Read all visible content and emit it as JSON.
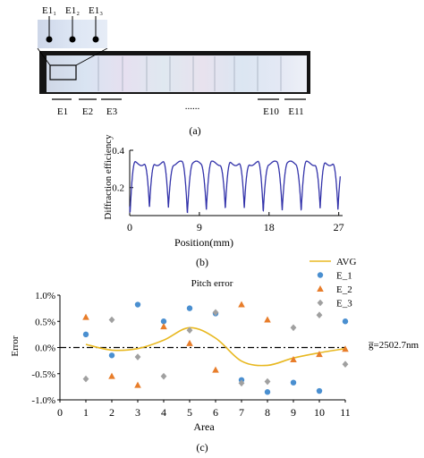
{
  "panel_a": {
    "inset_labels": [
      "E1₁",
      "E1₂",
      "E1₃"
    ],
    "region_labels": [
      "E1",
      "E2",
      "E3",
      "......",
      "E10",
      "E11"
    ],
    "caption": "(a)"
  },
  "panel_b": {
    "caption": "(b)"
  },
  "panel_c": {
    "caption": "(c)"
  },
  "chart_data": [
    {
      "type": "line",
      "title": "",
      "xlabel": "Position(mm)",
      "ylabel": "Diffraction efficiency",
      "xlim": [
        0,
        27.5
      ],
      "ylim": [
        0.05,
        0.4
      ],
      "x_ticks": [
        0,
        9,
        18,
        27
      ],
      "y_ticks": [
        0.2,
        0.4
      ],
      "series": [
        {
          "color": "#3333aa",
          "profile_plateau_level": 0.33,
          "dip_positions": [
            0.05,
            2.55,
            5.0,
            7.45,
            9.9,
            12.35,
            14.8,
            17.25,
            19.7,
            22.15,
            24.6,
            26.9
          ],
          "dip_min_values": [
            0.06,
            0.08,
            0.09,
            0.07,
            0.09,
            0.08,
            0.08,
            0.07,
            0.09,
            0.08,
            0.08,
            0.07
          ]
        }
      ]
    },
    {
      "type": "scatter",
      "title": "Pitch error",
      "xlabel": "Area",
      "ylabel": "Error",
      "xlim": [
        0,
        11
      ],
      "ylim": [
        -1.0,
        1.0
      ],
      "x_ticks": [
        0,
        1,
        2,
        3,
        4,
        5,
        6,
        7,
        8,
        9,
        10,
        11
      ],
      "y_ticks": [
        1.0,
        0.5,
        0.0,
        -0.5,
        -1.0
      ],
      "y_tick_labels": [
        "1.0%",
        "0.5%",
        "0.0%",
        "-0.5%",
        "-1.0%"
      ],
      "reference_line": {
        "y": 0.0,
        "label": "g̅=2502.7nm"
      },
      "legend_position": "top-right",
      "series": [
        {
          "name": "AVG",
          "kind": "curve",
          "color": "#e8b820",
          "x": [
            1,
            2,
            3,
            4,
            5,
            6,
            7,
            8,
            9,
            10,
            11
          ],
          "y": [
            0.06,
            -0.05,
            -0.02,
            0.14,
            0.38,
            0.18,
            -0.26,
            -0.34,
            -0.2,
            -0.1,
            -0.02
          ]
        },
        {
          "name": "E_1",
          "kind": "scatter",
          "marker": "circle",
          "color": "#4a8fd0",
          "x": [
            1,
            2,
            3,
            4,
            5,
            6,
            7,
            8,
            9,
            10,
            11
          ],
          "y": [
            0.25,
            -0.15,
            0.82,
            0.5,
            0.75,
            0.65,
            -0.62,
            -0.85,
            -0.67,
            -0.83,
            0.5
          ]
        },
        {
          "name": "E_2",
          "kind": "scatter",
          "marker": "triangle",
          "color": "#e87d2a",
          "x": [
            1,
            2,
            3,
            4,
            5,
            6,
            7,
            8,
            9,
            10,
            11
          ],
          "y": [
            0.58,
            -0.55,
            -0.72,
            0.4,
            0.08,
            -0.43,
            0.82,
            0.53,
            -0.23,
            -0.13,
            -0.03
          ]
        },
        {
          "name": "E_3",
          "kind": "scatter",
          "marker": "diamond",
          "color": "#a0a0a0",
          "x": [
            1,
            2,
            3,
            4,
            5,
            6,
            7,
            8,
            9,
            10,
            11
          ],
          "y": [
            -0.6,
            0.53,
            -0.18,
            -0.55,
            0.33,
            0.67,
            -0.68,
            -0.65,
            0.38,
            0.62,
            -0.32
          ]
        }
      ]
    }
  ]
}
